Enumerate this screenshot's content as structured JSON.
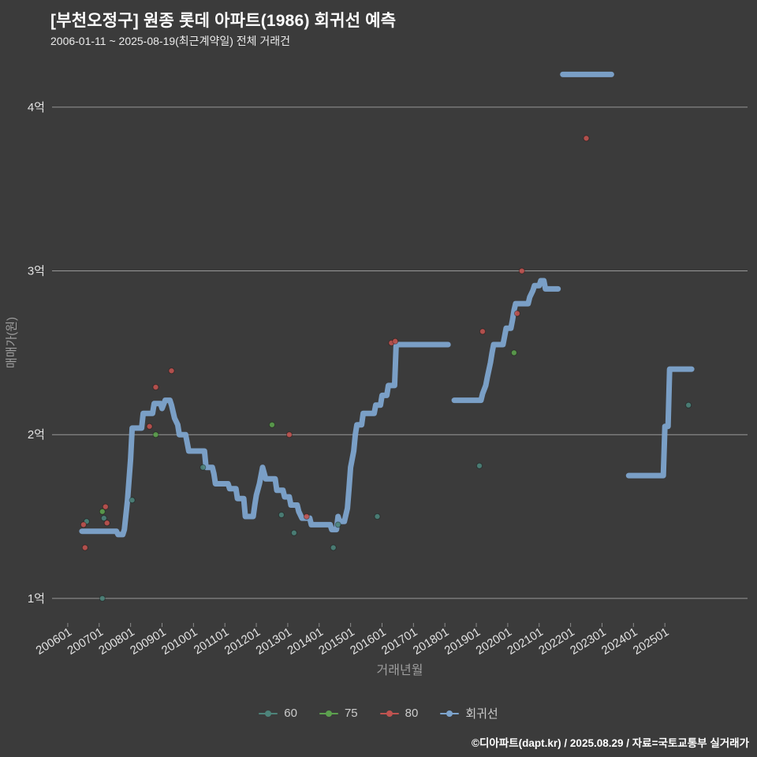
{
  "header": {
    "title": "[부천오정구] 원종 롯데 아파트(1986) 회귀선 예측",
    "subtitle": "2006-01-11 ~ 2025-08-19(최근계약일) 전체 거래건"
  },
  "footer": {
    "credit": "©디아파트(dapt.kr) / 2025.08.29 / 자료=국토교통부 실거래가"
  },
  "colors": {
    "background": "#3b3b3b",
    "title_text": "#ffffff",
    "axis_text": "#e2e2e2",
    "muted_text": "#9e9e9e",
    "gridline": "#979797",
    "tick_mark": "#8a8a8a",
    "series_60": "#4d837a",
    "series_75": "#5ca04e",
    "series_80": "#bf5350",
    "regression": "#7da4cd"
  },
  "chart_data": {
    "type": "scatter",
    "title": "[부천오정구] 원종 롯데 아파트(1986) 회귀선 예측",
    "xlabel": "거래년월",
    "ylabel": "매매가(원)",
    "unit": "억원",
    "xlim": [
      2005.5,
      2027.63
    ],
    "ylim": [
      0.85,
      4.25
    ],
    "grid": "horizontal",
    "legend_position": "bottom",
    "y_ticks": [
      {
        "value": 1,
        "label": "1억"
      },
      {
        "value": 2,
        "label": "2억"
      },
      {
        "value": 3,
        "label": "3억"
      },
      {
        "value": 4,
        "label": "4억"
      }
    ],
    "x_ticks": [
      {
        "value": 2006,
        "label": "200601"
      },
      {
        "value": 2007,
        "label": "200701"
      },
      {
        "value": 2008,
        "label": "200801"
      },
      {
        "value": 2009,
        "label": "200901"
      },
      {
        "value": 2010,
        "label": "201001"
      },
      {
        "value": 2011,
        "label": "201101"
      },
      {
        "value": 2012,
        "label": "201201"
      },
      {
        "value": 2013,
        "label": "201301"
      },
      {
        "value": 2014,
        "label": "201401"
      },
      {
        "value": 2015,
        "label": "201501"
      },
      {
        "value": 2016,
        "label": "201601"
      },
      {
        "value": 2017,
        "label": "201701"
      },
      {
        "value": 2018,
        "label": "201801"
      },
      {
        "value": 2019,
        "label": "201901"
      },
      {
        "value": 2020,
        "label": "202001"
      },
      {
        "value": 2021,
        "label": "202101"
      },
      {
        "value": 2022,
        "label": "202201"
      },
      {
        "value": 2023,
        "label": "202301"
      },
      {
        "value": 2024,
        "label": "202401"
      },
      {
        "value": 2025,
        "label": "202501"
      }
    ],
    "series": [
      {
        "name": "60",
        "color": "#4d837a",
        "points": [
          [
            2006.6,
            1.47
          ],
          [
            2007.1,
            1.0
          ],
          [
            2007.15,
            1.49
          ],
          [
            2008.05,
            1.6
          ],
          [
            2010.3,
            1.8
          ],
          [
            2012.8,
            1.51
          ],
          [
            2013.2,
            1.4
          ],
          [
            2014.45,
            1.31
          ],
          [
            2014.6,
            1.45
          ],
          [
            2015.85,
            1.5
          ],
          [
            2019.1,
            1.81
          ],
          [
            2025.75,
            2.18
          ]
        ]
      },
      {
        "name": "75",
        "color": "#5ca04e",
        "points": [
          [
            2007.1,
            1.53
          ],
          [
            2008.8,
            2.0
          ],
          [
            2012.5,
            2.06
          ],
          [
            2020.2,
            2.5
          ]
        ]
      },
      {
        "name": "80",
        "color": "#bf5350",
        "points": [
          [
            2006.5,
            1.45
          ],
          [
            2006.55,
            1.31
          ],
          [
            2007.2,
            1.56
          ],
          [
            2007.25,
            1.46
          ],
          [
            2008.6,
            2.05
          ],
          [
            2008.8,
            2.29
          ],
          [
            2009.3,
            2.39
          ],
          [
            2013.05,
            2.0
          ],
          [
            2013.6,
            1.5
          ],
          [
            2016.3,
            2.56
          ],
          [
            2016.42,
            2.57
          ],
          [
            2019.2,
            2.63
          ],
          [
            2020.3,
            2.74
          ],
          [
            2020.45,
            3.0
          ],
          [
            2022.5,
            3.81
          ]
        ]
      }
    ],
    "regression": {
      "name": "회귀선",
      "color": "#7da4cd",
      "width": 7,
      "segments": [
        [
          [
            2006.45,
            1.41
          ],
          [
            2007.55,
            1.41
          ],
          [
            2007.6,
            1.39
          ],
          [
            2007.75,
            1.39
          ],
          [
            2007.8,
            1.42
          ],
          [
            2007.9,
            1.6
          ],
          [
            2008.0,
            1.85
          ],
          [
            2008.05,
            2.04
          ],
          [
            2008.35,
            2.04
          ],
          [
            2008.4,
            2.13
          ],
          [
            2008.7,
            2.13
          ],
          [
            2008.75,
            2.19
          ],
          [
            2008.95,
            2.19
          ],
          [
            2009.0,
            2.16
          ],
          [
            2009.1,
            2.21
          ],
          [
            2009.25,
            2.21
          ],
          [
            2009.3,
            2.18
          ],
          [
            2009.4,
            2.1
          ],
          [
            2009.5,
            2.06
          ],
          [
            2009.55,
            2.0
          ],
          [
            2009.75,
            2.0
          ],
          [
            2009.8,
            1.95
          ],
          [
            2009.85,
            1.9
          ],
          [
            2010.35,
            1.9
          ],
          [
            2010.4,
            1.8
          ],
          [
            2010.6,
            1.8
          ],
          [
            2010.65,
            1.76
          ],
          [
            2010.7,
            1.7
          ],
          [
            2011.1,
            1.7
          ],
          [
            2011.15,
            1.67
          ],
          [
            2011.35,
            1.67
          ],
          [
            2011.4,
            1.61
          ],
          [
            2011.6,
            1.61
          ],
          [
            2011.65,
            1.5
          ],
          [
            2011.9,
            1.5
          ],
          [
            2011.95,
            1.57
          ],
          [
            2012.0,
            1.63
          ],
          [
            2012.1,
            1.7
          ],
          [
            2012.2,
            1.8
          ],
          [
            2012.3,
            1.73
          ],
          [
            2012.6,
            1.73
          ],
          [
            2012.65,
            1.66
          ],
          [
            2012.85,
            1.66
          ],
          [
            2012.9,
            1.62
          ],
          [
            2013.05,
            1.62
          ],
          [
            2013.1,
            1.57
          ],
          [
            2013.3,
            1.57
          ],
          [
            2013.35,
            1.53
          ],
          [
            2013.45,
            1.49
          ],
          [
            2013.7,
            1.49
          ],
          [
            2013.75,
            1.45
          ],
          [
            2014.35,
            1.45
          ],
          [
            2014.4,
            1.42
          ],
          [
            2014.55,
            1.42
          ],
          [
            2014.6,
            1.5
          ],
          [
            2014.65,
            1.47
          ],
          [
            2014.8,
            1.47
          ],
          [
            2014.9,
            1.55
          ],
          [
            2014.95,
            1.67
          ],
          [
            2015.0,
            1.8
          ],
          [
            2015.1,
            1.9
          ],
          [
            2015.15,
            2.0
          ],
          [
            2015.2,
            2.06
          ],
          [
            2015.35,
            2.06
          ],
          [
            2015.4,
            2.13
          ],
          [
            2015.75,
            2.13
          ],
          [
            2015.8,
            2.18
          ],
          [
            2015.95,
            2.18
          ],
          [
            2016.0,
            2.24
          ],
          [
            2016.15,
            2.24
          ],
          [
            2016.2,
            2.3
          ],
          [
            2016.4,
            2.3
          ],
          [
            2016.45,
            2.55
          ],
          [
            2018.1,
            2.55
          ]
        ],
        [
          [
            2018.3,
            2.21
          ],
          [
            2019.15,
            2.21
          ],
          [
            2019.2,
            2.25
          ],
          [
            2019.3,
            2.3
          ],
          [
            2019.35,
            2.35
          ],
          [
            2019.45,
            2.44
          ],
          [
            2019.5,
            2.5
          ],
          [
            2019.55,
            2.55
          ],
          [
            2019.85,
            2.55
          ],
          [
            2019.9,
            2.6
          ],
          [
            2019.95,
            2.65
          ],
          [
            2020.1,
            2.65
          ],
          [
            2020.15,
            2.7
          ],
          [
            2020.2,
            2.76
          ],
          [
            2020.25,
            2.8
          ],
          [
            2020.65,
            2.8
          ],
          [
            2020.7,
            2.84
          ],
          [
            2020.8,
            2.88
          ],
          [
            2020.85,
            2.91
          ],
          [
            2021.0,
            2.91
          ],
          [
            2021.05,
            2.94
          ],
          [
            2021.15,
            2.94
          ],
          [
            2021.2,
            2.89
          ],
          [
            2021.6,
            2.89
          ]
        ],
        [
          [
            2021.75,
            4.2
          ],
          [
            2023.3,
            4.2
          ]
        ],
        [
          [
            2023.85,
            1.75
          ],
          [
            2024.95,
            1.75
          ],
          [
            2025.0,
            2.05
          ],
          [
            2025.1,
            2.05
          ],
          [
            2025.15,
            2.4
          ],
          [
            2025.85,
            2.4
          ]
        ]
      ]
    }
  }
}
